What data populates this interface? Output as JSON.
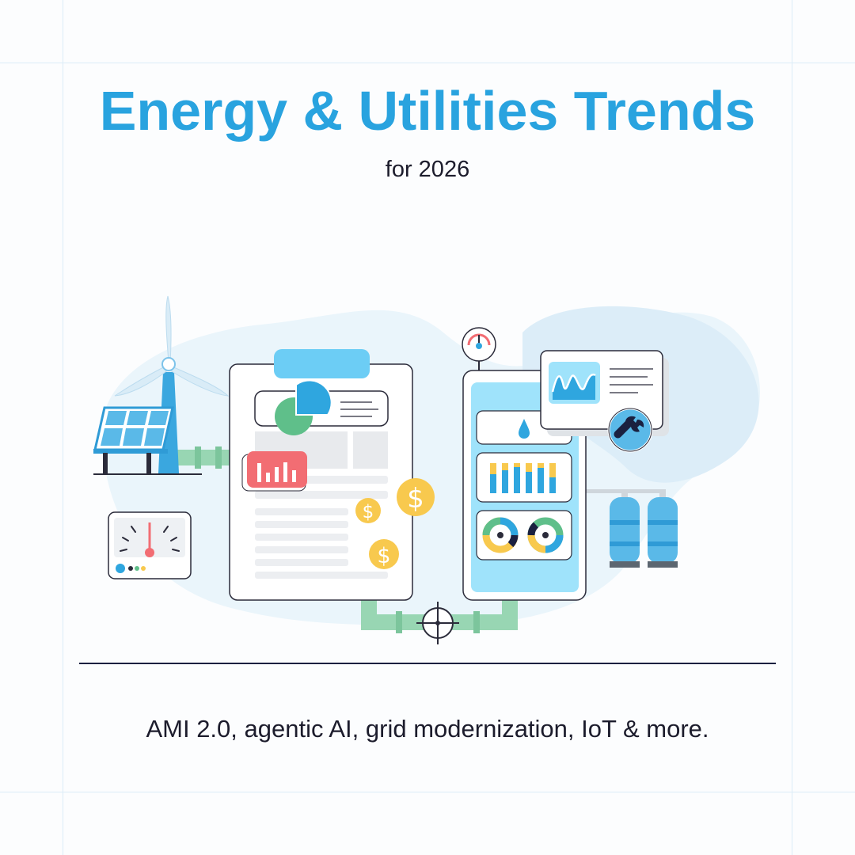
{
  "header": {
    "title": "Energy & Utilities Trends",
    "subtitle": "for 2026"
  },
  "footer": {
    "tagline": "AMI 2.0, agentic AI, grid modernization, IoT & more."
  },
  "colors": {
    "title": "#29a3df",
    "text": "#1c1c2c",
    "divider": "#1a2040",
    "accent_blue": "#2fa6df",
    "accent_green": "#5fbf8a",
    "accent_yellow": "#f8c94e",
    "accent_red": "#f26d73",
    "pipe_green": "#98d6b3"
  },
  "illustration": {
    "icons": [
      "wind-turbine-icon",
      "solar-panel-icon",
      "document-report-icon",
      "pie-chart-icon",
      "bar-chart-icon",
      "dollar-coin-icon",
      "smartphone-dashboard-icon",
      "water-drop-icon",
      "gauge-icon",
      "waveform-chart-icon",
      "wrench-icon",
      "gas-tanks-icon",
      "meter-icon",
      "crosshair-icon",
      "pipe-icon"
    ]
  }
}
